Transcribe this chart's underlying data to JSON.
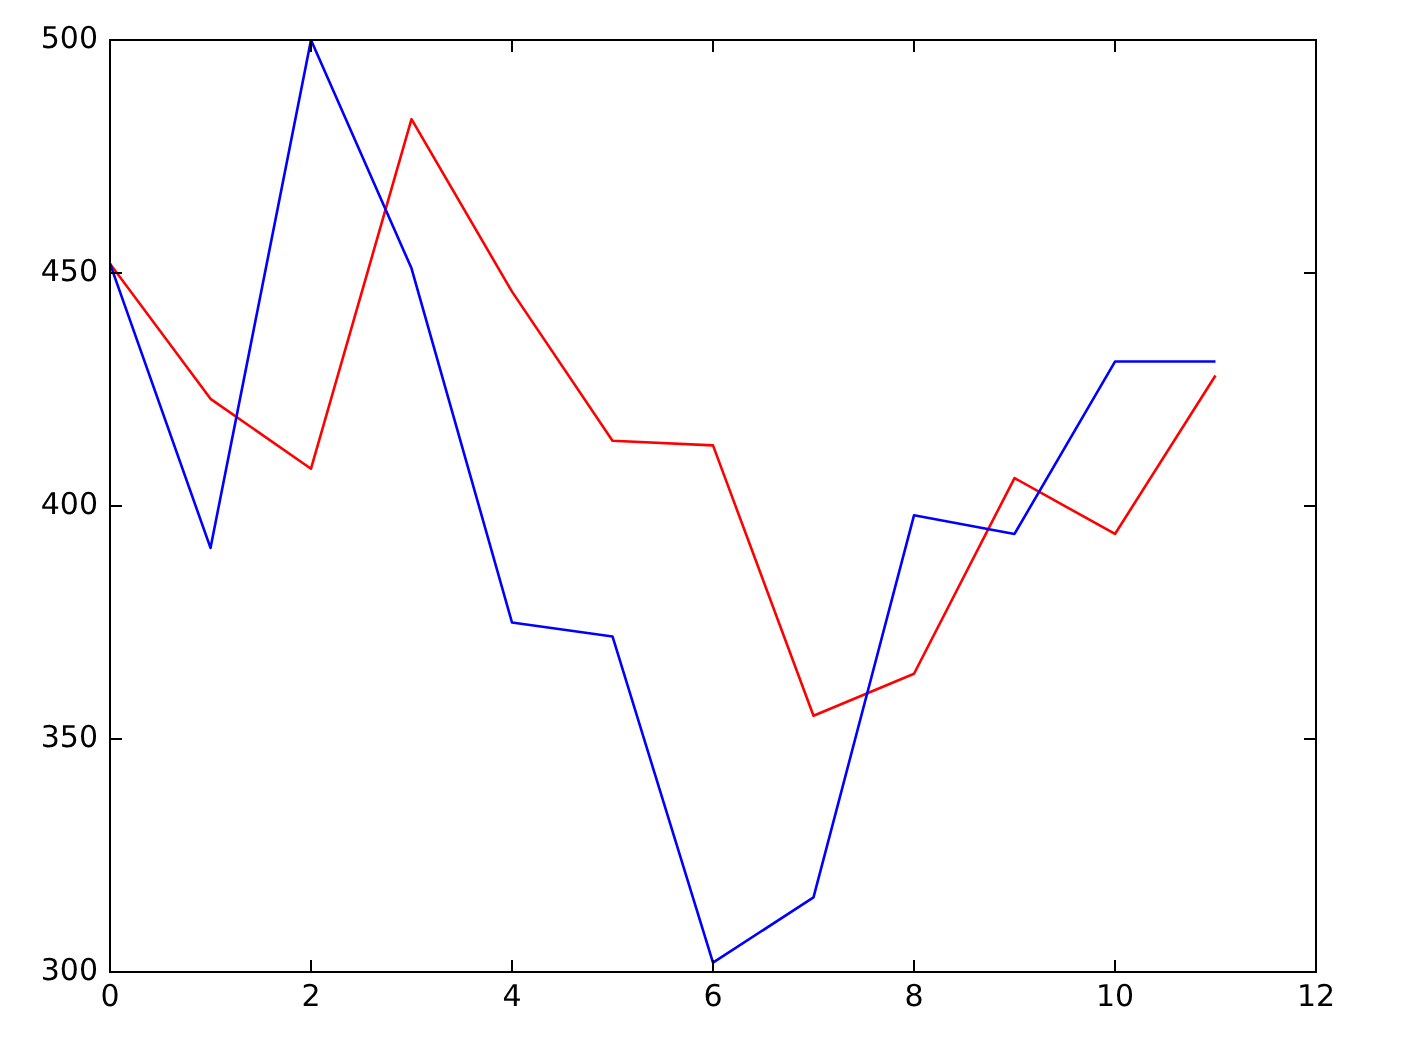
{
  "chart_data": {
    "type": "line",
    "x": [
      0,
      1,
      2,
      3,
      4,
      5,
      6,
      7,
      8,
      9,
      10,
      11
    ],
    "series": [
      {
        "color": "#0000ff",
        "values": [
          452,
          391,
          500,
          451,
          375,
          372,
          302,
          316,
          398,
          394,
          431,
          431
        ]
      },
      {
        "color": "#ff0000",
        "values": [
          452,
          423,
          408,
          483,
          446,
          414,
          413,
          355,
          364,
          406,
          394,
          428
        ]
      }
    ],
    "xlim": [
      0,
      12
    ],
    "xticks": [
      0,
      2,
      4,
      6,
      8,
      10,
      12
    ],
    "ylim": [
      300,
      500
    ],
    "yticks": [
      300,
      350,
      400,
      450,
      500
    ],
    "grid": false,
    "legend": false,
    "marker": "none",
    "line_style": "solid"
  }
}
